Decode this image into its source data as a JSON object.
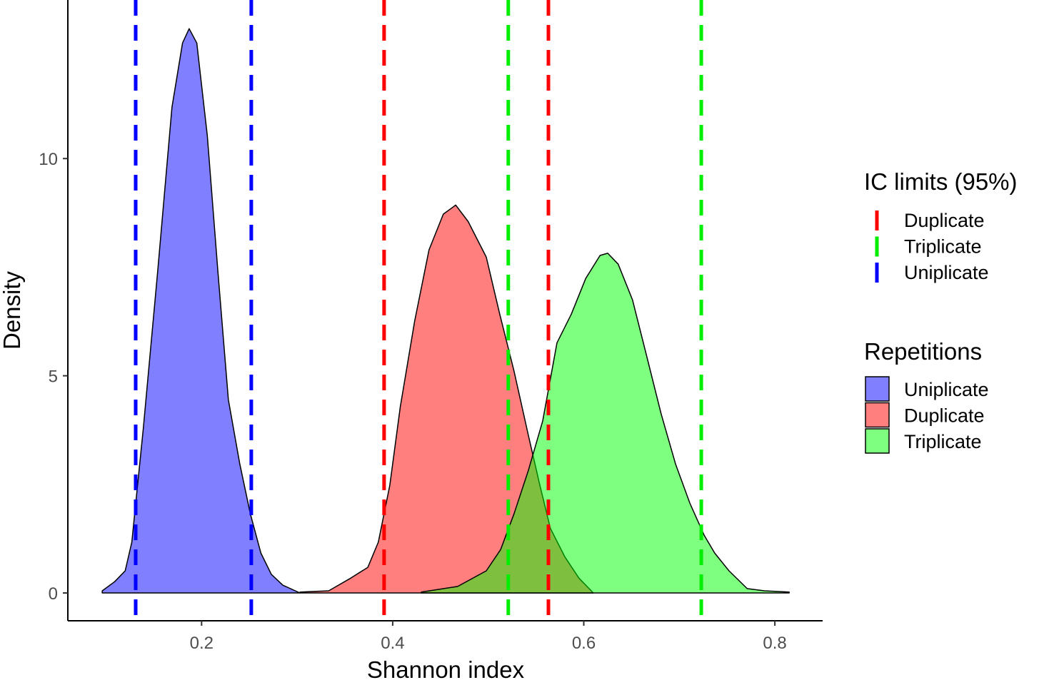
{
  "chart_data": {
    "type": "area",
    "title": "",
    "xlabel": "Shannon index",
    "ylabel": "Density",
    "xlim": [
      0.06,
      0.85
    ],
    "ylim": [
      -0.64,
      13.65
    ],
    "xticks": [
      0.2,
      0.4,
      0.6,
      0.8
    ],
    "xtick_labels": [
      "0.2",
      "0.4",
      "0.6",
      "0.8"
    ],
    "yticks": [
      0,
      5,
      10
    ],
    "ytick_labels": [
      "0",
      "5",
      "10"
    ],
    "grid": false,
    "legend_position": "right",
    "density_legend_title": "Repetitions",
    "limits_legend_title": "IC limits (95%)",
    "series": [
      {
        "name": "Uniplicate",
        "color": "#0000ff",
        "x": [
          0.096,
          0.109,
          0.12,
          0.127,
          0.139,
          0.154,
          0.169,
          0.18,
          0.187,
          0.195,
          0.206,
          0.217,
          0.228,
          0.24,
          0.251,
          0.262,
          0.273,
          0.285,
          0.303
        ],
        "y": [
          0.05,
          0.26,
          0.51,
          1.17,
          3.79,
          7.4,
          11.18,
          12.66,
          12.99,
          12.66,
          10.53,
          7.41,
          4.45,
          2.97,
          1.82,
          0.92,
          0.43,
          0.18,
          0.0
        ]
      },
      {
        "name": "Duplicate",
        "color": "#ff0000",
        "x": [
          0.303,
          0.333,
          0.356,
          0.374,
          0.385,
          0.397,
          0.408,
          0.423,
          0.438,
          0.453,
          0.466,
          0.479,
          0.498,
          0.512,
          0.527,
          0.542,
          0.554,
          0.565,
          0.58,
          0.595,
          0.61
        ],
        "y": [
          0.02,
          0.05,
          0.34,
          0.59,
          1.17,
          2.48,
          4.29,
          6.26,
          7.9,
          8.72,
          8.93,
          8.55,
          7.73,
          6.42,
          5.11,
          3.63,
          2.48,
          1.49,
          0.84,
          0.34,
          0.0
        ]
      },
      {
        "name": "Triplicate",
        "color": "#00ff00",
        "x": [
          0.43,
          0.468,
          0.498,
          0.513,
          0.527,
          0.542,
          0.557,
          0.572,
          0.587,
          0.602,
          0.617,
          0.625,
          0.636,
          0.651,
          0.666,
          0.681,
          0.696,
          0.711,
          0.726,
          0.737,
          0.752,
          0.771,
          0.789,
          0.815
        ],
        "y": [
          0.02,
          0.15,
          0.51,
          1.0,
          1.82,
          2.82,
          3.96,
          5.76,
          6.42,
          7.24,
          7.77,
          7.82,
          7.57,
          6.75,
          5.44,
          4.12,
          2.97,
          2.07,
          1.33,
          0.92,
          0.51,
          0.1,
          0.05,
          0.02
        ]
      }
    ],
    "ic_limits": [
      {
        "name": "Duplicate",
        "color": "#ff0000",
        "lower": 0.391,
        "upper": 0.563
      },
      {
        "name": "Triplicate",
        "color": "#00ee00",
        "lower": 0.521,
        "upper": 0.723
      },
      {
        "name": "Uniplicate",
        "color": "#0000ff",
        "lower": 0.131,
        "upper": 0.252
      }
    ],
    "density_legend_order": [
      "Uniplicate",
      "Duplicate",
      "Triplicate"
    ]
  }
}
